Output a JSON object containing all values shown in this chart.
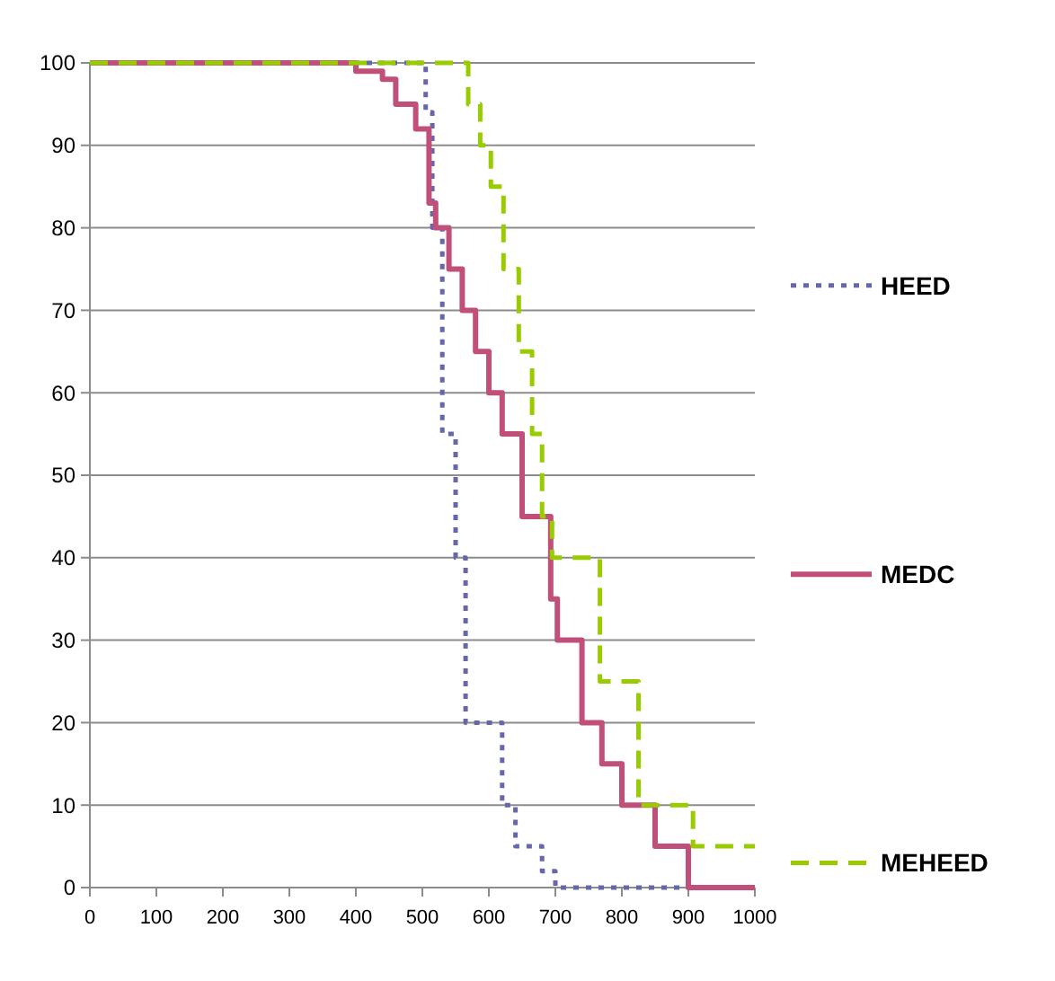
{
  "chart_data": {
    "type": "step",
    "xlim": [
      0,
      1000
    ],
    "xticks": [
      0,
      100,
      200,
      300,
      400,
      500,
      600,
      700,
      800,
      900,
      1000
    ],
    "ylim": [
      0,
      100
    ],
    "yticks": [
      0,
      10,
      20,
      30,
      40,
      50,
      60,
      70,
      80,
      90,
      100
    ],
    "grid": "y",
    "legend": "right",
    "series": [
      {
        "name": "HEED",
        "color": "#6666aa",
        "line_style": "dotted",
        "x": [
          0,
          505,
          515,
          530,
          550,
          565,
          620,
          640,
          680,
          700,
          890
        ],
        "values": [
          100,
          94,
          80,
          55,
          40,
          20,
          10,
          5,
          2,
          0,
          0
        ]
      },
      {
        "name": "MEDC",
        "color": "#c0507a",
        "line_style": "solid",
        "x": [
          0,
          400,
          440,
          460,
          490,
          510,
          520,
          540,
          560,
          580,
          600,
          620,
          650,
          693,
          703,
          740,
          770,
          800,
          850,
          900,
          1000
        ],
        "values": [
          100,
          99,
          98,
          95,
          92,
          83,
          80,
          75,
          70,
          65,
          60,
          55,
          45,
          35,
          30,
          20,
          15,
          10,
          5,
          0,
          0
        ]
      },
      {
        "name": "MEHEED",
        "color": "#99cc00",
        "line_style": "dashed",
        "x": [
          0,
          569,
          587,
          603,
          622,
          645,
          665,
          680,
          695,
          701,
          767,
          825,
          907,
          1000
        ],
        "values": [
          100,
          95,
          90,
          85,
          75,
          65,
          55,
          45,
          40,
          40,
          25,
          10,
          5,
          5
        ]
      }
    ]
  }
}
